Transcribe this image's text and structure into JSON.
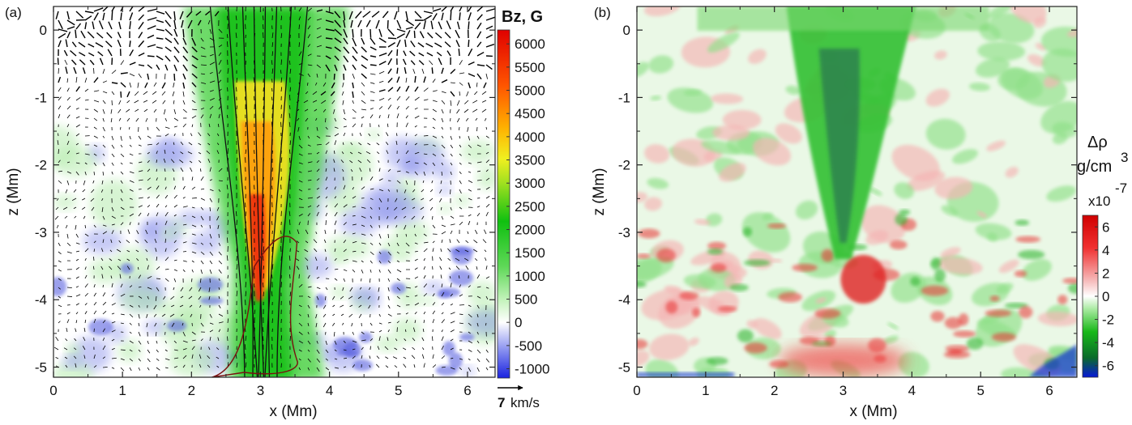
{
  "chart_data": [
    {
      "type": "heatmap",
      "panel_label": "(a)",
      "xlabel": "x (Mm)",
      "ylabel": "z (Mm)",
      "xlim": [
        0,
        6.4
      ],
      "ylim": [
        -5.15,
        0.35
      ],
      "x_ticks": [
        "0",
        "1",
        "2",
        "3",
        "4",
        "5",
        "6"
      ],
      "y_ticks": [
        "0",
        "-1",
        "-2",
        "-3",
        "-4",
        "-5"
      ],
      "colorbar": {
        "title": "Bz, G",
        "range": [
          -1200,
          6300
        ],
        "ticks": [
          "6000",
          "5500",
          "5000",
          "4500",
          "4000",
          "3500",
          "3000",
          "2500",
          "2000",
          "1500",
          "1000",
          "500",
          "0",
          "-500",
          "-1000"
        ],
        "colors": [
          "#1a22e0",
          "#8890f0",
          "#ffffff",
          "#b8f0b0",
          "#33cc33",
          "#00c000",
          "#f0f020",
          "#ffb000",
          "#ff5000",
          "#e00000"
        ]
      },
      "overlays": [
        "velocity-vectors",
        "magnetic-field-lines"
      ],
      "vector_reference": {
        "magnitude": "7",
        "unit": "km/s"
      },
      "description_shape": "vertical magnetic flux tube centered near x≈3 Mm with peak Bz ≈6000 G near z≈-3.5 Mm"
    },
    {
      "type": "heatmap",
      "panel_label": "(b)",
      "xlabel": "x (Mm)",
      "ylabel": "z (Mm)",
      "xlim": [
        0,
        6.4
      ],
      "ylim": [
        -5.15,
        0.35
      ],
      "x_ticks": [
        "0",
        "1",
        "2",
        "3",
        "4",
        "5",
        "6"
      ],
      "y_ticks": [
        "0",
        "-1",
        "-2",
        "-3",
        "-4",
        "-5"
      ],
      "colorbar": {
        "title_line1": "Δρ",
        "title_line2": "g/cm",
        "title_sup": "3",
        "multiplier": "x10",
        "multiplier_exp": "-7",
        "range": [
          -7,
          7
        ],
        "ticks": [
          "6",
          "4",
          "2",
          "0",
          "-2",
          "-4",
          "-6"
        ],
        "colors": [
          "#1020d0",
          "#10a010",
          "#30d030",
          "#ffffff",
          "#f0a0a0",
          "#ee2020",
          "#c00000"
        ]
      }
    }
  ]
}
